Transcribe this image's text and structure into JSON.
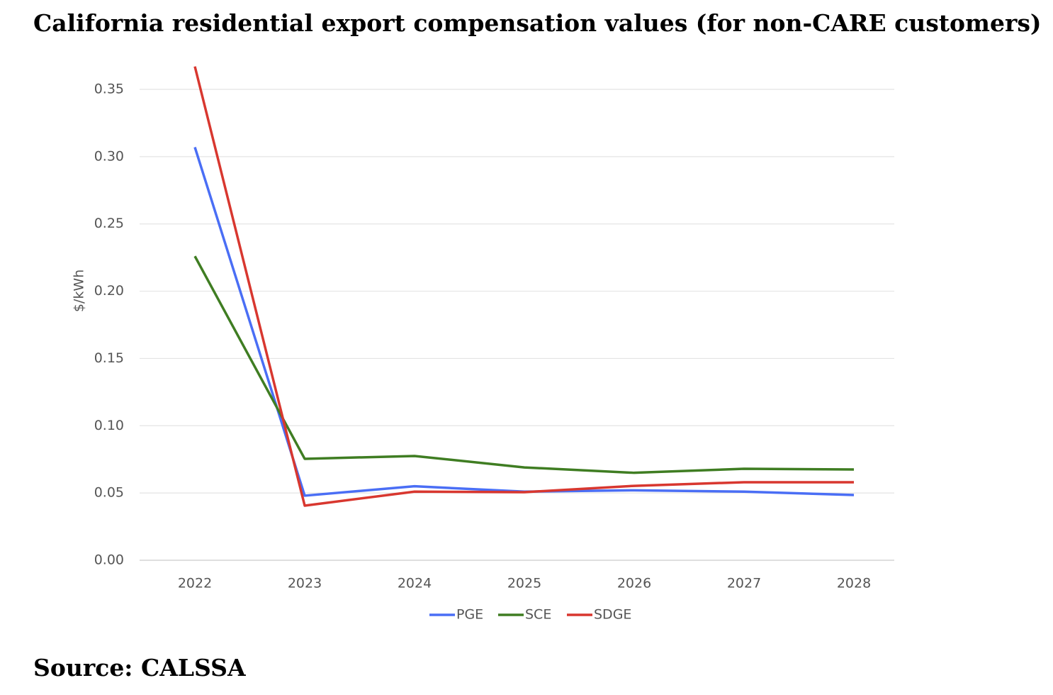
{
  "chart_data": {
    "type": "line",
    "title": "California residential export compensation values (for non-CARE customers)",
    "y_label": "$/kWh",
    "source": "Source: CALSSA",
    "categories": [
      "2022",
      "2023",
      "2024",
      "2025",
      "2026",
      "2027",
      "2028"
    ],
    "series": [
      {
        "name": "PGE",
        "color": "#4a6ef5",
        "values": [
          0.307,
          0.048,
          0.055,
          0.051,
          0.052,
          0.051,
          0.0485
        ]
      },
      {
        "name": "SCE",
        "color": "#3f7d22",
        "values": [
          0.226,
          0.0754,
          0.0775,
          0.069,
          0.065,
          0.068,
          0.0675
        ]
      },
      {
        "name": "SDGE",
        "color": "#d8372f",
        "values": [
          0.367,
          0.0406,
          0.051,
          0.0506,
          0.0553,
          0.058,
          0.058
        ]
      }
    ],
    "ylim": [
      0,
      0.35
    ],
    "yticks": [
      {
        "value": 0,
        "label": "0.00"
      },
      {
        "value": 0.05,
        "label": "0.05"
      },
      {
        "value": 0.1,
        "label": "0.10"
      },
      {
        "value": 0.15,
        "label": "0.15"
      },
      {
        "value": 0.2,
        "label": "0.20"
      },
      {
        "value": 0.25,
        "label": "0.25"
      },
      {
        "value": 0.3,
        "label": "0.30"
      },
      {
        "value": 0.35,
        "label": "0.35"
      }
    ],
    "grid": true,
    "legend": "bottom"
  }
}
